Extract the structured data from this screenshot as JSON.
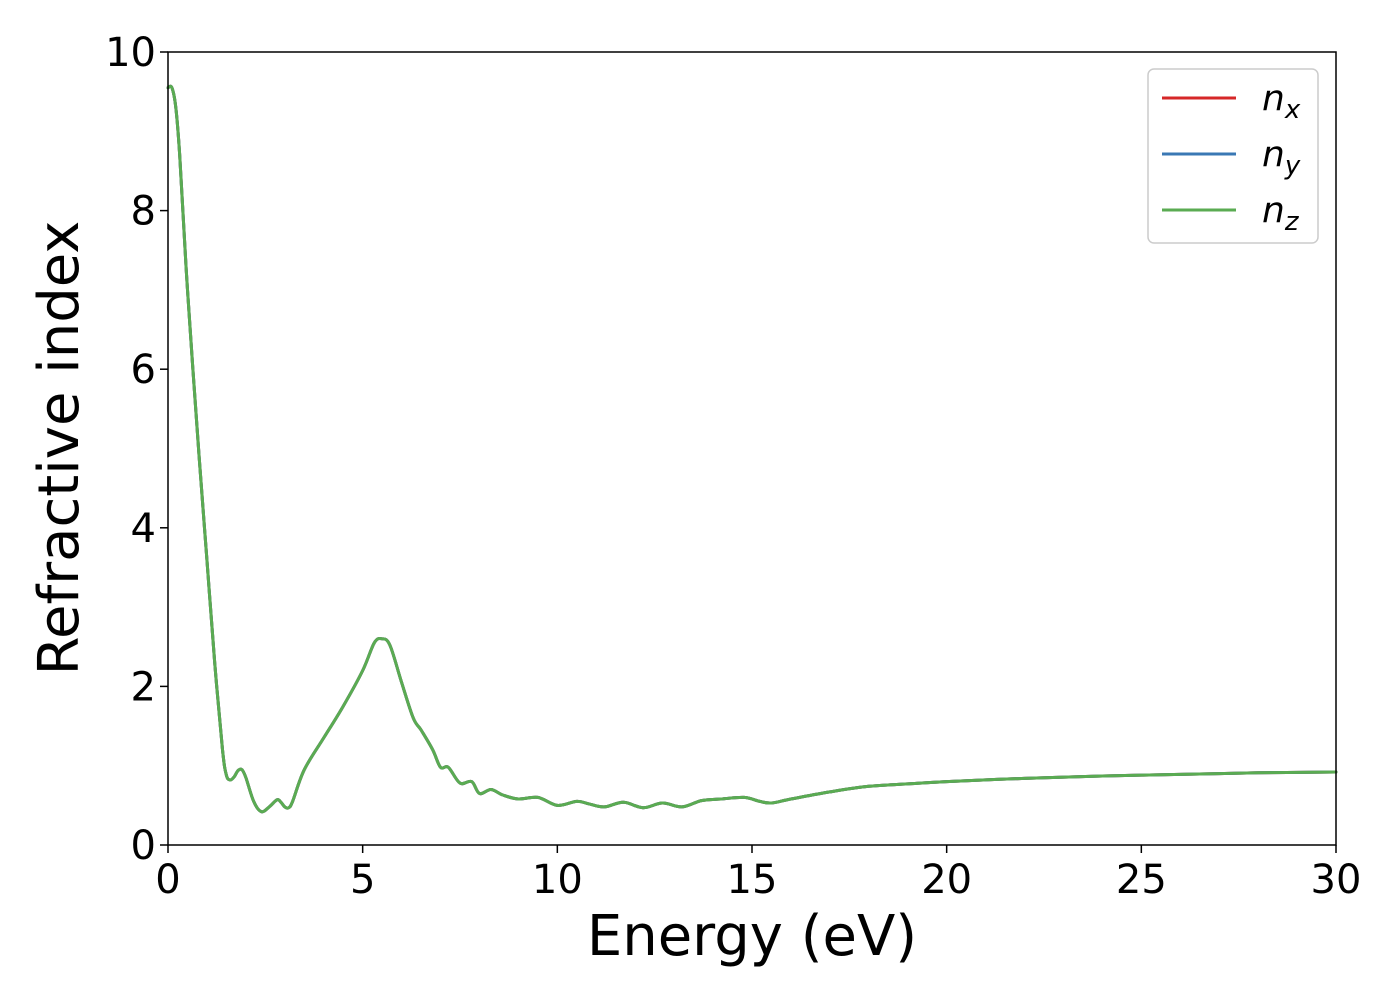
{
  "chart_data": {
    "type": "line",
    "xlabel": "Energy (eV)",
    "ylabel": "Refractive index",
    "xlim": [
      0,
      30
    ],
    "ylim": [
      0,
      10
    ],
    "xticks": [
      0,
      5,
      10,
      15,
      20,
      25,
      30
    ],
    "yticks": [
      0,
      2,
      4,
      6,
      8,
      10
    ],
    "grid": false,
    "legend_position": "top-right",
    "x": [
      0,
      0.1,
      0.2,
      0.3,
      0.5,
      0.8,
      1.0,
      1.2,
      1.4,
      1.5,
      1.6,
      1.7,
      1.8,
      1.9,
      2.0,
      2.2,
      2.4,
      2.6,
      2.8,
      2.9,
      3.0,
      3.1,
      3.2,
      3.5,
      4.0,
      4.5,
      5.0,
      5.3,
      5.5,
      5.7,
      6.0,
      6.3,
      6.5,
      6.8,
      7.0,
      7.2,
      7.5,
      7.8,
      8.0,
      8.3,
      8.6,
      9.0,
      9.5,
      10.0,
      10.5,
      10.8,
      11.2,
      11.7,
      12.2,
      12.7,
      13.2,
      13.7,
      14.2,
      14.8,
      15.2,
      15.5,
      16.0,
      17.0,
      18.0,
      19.0,
      20.0,
      22.0,
      24.0,
      26.0,
      28.0,
      30.0
    ],
    "y": [
      9.55,
      9.55,
      9.3,
      8.7,
      7.0,
      4.9,
      3.6,
      2.3,
      1.2,
      0.88,
      0.82,
      0.86,
      0.94,
      0.95,
      0.85,
      0.55,
      0.42,
      0.48,
      0.57,
      0.54,
      0.48,
      0.47,
      0.55,
      0.95,
      1.35,
      1.75,
      2.2,
      2.55,
      2.6,
      2.52,
      2.05,
      1.6,
      1.45,
      1.2,
      0.98,
      0.98,
      0.78,
      0.8,
      0.65,
      0.7,
      0.63,
      0.58,
      0.6,
      0.5,
      0.55,
      0.52,
      0.48,
      0.54,
      0.47,
      0.53,
      0.48,
      0.56,
      0.58,
      0.6,
      0.55,
      0.53,
      0.58,
      0.67,
      0.74,
      0.77,
      0.8,
      0.84,
      0.87,
      0.89,
      0.91,
      0.92
    ],
    "series": [
      {
        "name": "n",
        "sub": "x",
        "color": "#d62728"
      },
      {
        "name": "n",
        "sub": "y",
        "color": "#3a78b4"
      },
      {
        "name": "n",
        "sub": "z",
        "color": "#5aab52"
      }
    ]
  }
}
